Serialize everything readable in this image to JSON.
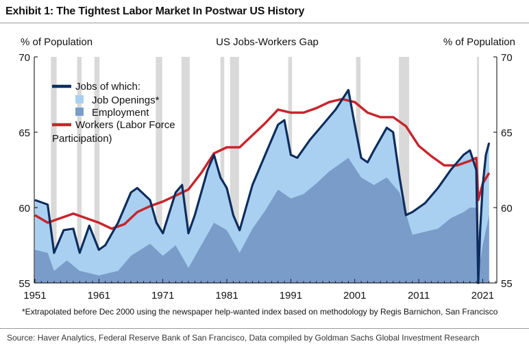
{
  "exhibit_title": "Exhibit 1: The Tightest Labor Market In Postwar US History",
  "footnote": "*Extrapolated before Dec 2000 using the newspaper help-wanted index based on methodology by Regis Barnichon, San Francisco",
  "source": "Source: Haver Analytics, Federal Reserve Bank of San Francisco, Data compiled by Goldman Sachs Global Investment Research",
  "colors": {
    "jobs": "#0d2d5e",
    "job_openings": "#a9d0f0",
    "employment": "#7a9cc9",
    "workers": "#c8252c",
    "recession": "#d9d9d9"
  },
  "chart_data": {
    "type": "line",
    "title": "US Jobs-Workers Gap",
    "ylabel_left": "% of Population",
    "ylabel_right": "% of Population",
    "ylim": [
      55,
      70
    ],
    "xlim": [
      1951,
      2023
    ],
    "yticks": [
      55,
      60,
      65,
      70
    ],
    "xticks": [
      1951,
      1961,
      1971,
      1981,
      1991,
      2001,
      2011,
      2021
    ],
    "grid": false,
    "legend_position": "top-left",
    "legend": [
      {
        "label": "Jobs of which:",
        "kind": "line",
        "color_key": "jobs"
      },
      {
        "label": "Job Openings*",
        "kind": "area",
        "color_key": "job_openings"
      },
      {
        "label": "Employment",
        "kind": "area",
        "color_key": "employment"
      },
      {
        "label": "Workers (Labor Force",
        "kind": "line",
        "color_key": "workers"
      },
      {
        "label": "Participation)",
        "kind": "none",
        "color_key": ""
      }
    ],
    "recessions": [
      [
        1953.5,
        1954.4
      ],
      [
        1957.6,
        1958.3
      ],
      [
        1960.3,
        1961.1
      ],
      [
        1969.9,
        1970.9
      ],
      [
        1973.9,
        1975.2
      ],
      [
        1980.0,
        1980.6
      ],
      [
        1981.5,
        1982.9
      ],
      [
        1990.6,
        1991.2
      ],
      [
        2001.2,
        2001.9
      ],
      [
        2007.9,
        2009.5
      ],
      [
        2020.1,
        2020.4
      ]
    ],
    "series": [
      {
        "name": "Jobs of which:",
        "x": [
          1951,
          1953,
          1954,
          1955.5,
          1957,
          1958,
          1959.5,
          1961,
          1962,
          1964,
          1966,
          1967,
          1969,
          1970,
          1971,
          1973,
          1974,
          1975,
          1976,
          1978,
          1979,
          1980,
          1981,
          1982,
          1983,
          1985,
          1987,
          1989,
          1990,
          1991,
          1992,
          1994,
          1996,
          1998,
          2000,
          2001,
          2002,
          2003,
          2004,
          2006,
          2007,
          2008,
          2009,
          2010,
          2012,
          2014,
          2016,
          2018,
          2019,
          2020,
          2020.3,
          2020.6,
          2021,
          2021.5,
          2022
        ],
        "values": [
          60.5,
          60.2,
          57.0,
          58.5,
          58.6,
          57.0,
          58.8,
          57.2,
          57.5,
          59.0,
          61.0,
          61.3,
          60.5,
          59.0,
          58.3,
          61.0,
          61.5,
          58.3,
          59.5,
          62.5,
          63.5,
          62.0,
          61.3,
          59.5,
          58.5,
          61.5,
          63.5,
          65.5,
          65.8,
          63.5,
          63.3,
          64.5,
          65.5,
          66.5,
          67.8,
          65.5,
          63.3,
          63.0,
          63.8,
          65.3,
          65.0,
          62.0,
          59.5,
          59.7,
          60.3,
          61.3,
          62.5,
          63.5,
          63.8,
          62.5,
          55.0,
          58.5,
          61.5,
          63.5,
          64.3
        ]
      },
      {
        "name": "Job Openings*",
        "x": [
          1951,
          1953,
          1954,
          1955.5,
          1957,
          1958,
          1959.5,
          1961,
          1962,
          1964,
          1966,
          1967,
          1969,
          1970,
          1971,
          1973,
          1974,
          1975,
          1976,
          1978,
          1979,
          1980,
          1981,
          1982,
          1983,
          1985,
          1987,
          1989,
          1990,
          1991,
          1992,
          1994,
          1996,
          1998,
          2000,
          2001,
          2002,
          2003,
          2004,
          2006,
          2007,
          2008,
          2009,
          2010,
          2012,
          2014,
          2016,
          2018,
          2019,
          2020,
          2020.3,
          2020.6,
          2021,
          2021.5,
          2022
        ],
        "values": [
          60.4,
          60.1,
          56.9,
          58.4,
          58.5,
          56.9,
          58.7,
          57.1,
          57.4,
          58.9,
          60.9,
          61.2,
          60.4,
          58.9,
          58.2,
          60.9,
          61.4,
          58.2,
          59.4,
          62.4,
          63.4,
          61.9,
          61.2,
          59.4,
          58.4,
          61.4,
          63.4,
          65.4,
          65.7,
          63.4,
          63.2,
          64.4,
          65.4,
          66.4,
          67.7,
          65.4,
          63.2,
          62.9,
          63.7,
          65.2,
          64.9,
          61.9,
          59.4,
          59.6,
          60.2,
          61.2,
          62.4,
          63.4,
          63.7,
          62.4,
          55.0,
          58.4,
          61.4,
          63.4,
          64.2
        ]
      },
      {
        "name": "Employment",
        "x": [
          1951,
          1953,
          1954,
          1956,
          1958,
          1961,
          1964,
          1966,
          1969,
          1971,
          1973,
          1975,
          1977,
          1979,
          1981,
          1983,
          1985,
          1987,
          1989,
          1991,
          1993,
          1995,
          1997,
          2000,
          2002,
          2004,
          2006,
          2008,
          2010,
          2012,
          2014,
          2016,
          2018,
          2019,
          2020,
          2020.3,
          2020.6,
          2021,
          2021.5,
          2022
        ],
        "values": [
          57.2,
          57.0,
          55.8,
          56.5,
          55.8,
          55.5,
          55.8,
          56.8,
          57.6,
          56.8,
          57.5,
          56.0,
          57.5,
          59.0,
          58.5,
          57.0,
          58.6,
          59.8,
          61.2,
          60.6,
          60.9,
          61.6,
          62.4,
          63.3,
          62.0,
          61.5,
          62.0,
          61.0,
          58.2,
          58.4,
          58.6,
          59.3,
          59.7,
          60.0,
          60.0,
          55.0,
          56.5,
          57.5,
          58.5,
          59.5
        ]
      },
      {
        "name": "Workers (Labor Force Participation)",
        "x": [
          1951,
          1953,
          1955,
          1957,
          1959,
          1961,
          1963,
          1965,
          1967,
          1969,
          1971,
          1973,
          1975,
          1977,
          1979,
          1981,
          1983,
          1985,
          1987,
          1989,
          1991,
          1993,
          1995,
          1997,
          1999,
          2001,
          2003,
          2005,
          2007,
          2009,
          2011,
          2013,
          2015,
          2017,
          2019,
          2020,
          2020.3,
          2021,
          2022
        ],
        "values": [
          59.5,
          59.0,
          59.3,
          59.6,
          59.3,
          59.0,
          58.6,
          58.9,
          59.7,
          60.1,
          60.4,
          60.8,
          61.2,
          62.3,
          63.6,
          64.0,
          64.0,
          64.8,
          65.6,
          66.5,
          66.3,
          66.3,
          66.6,
          67.0,
          67.2,
          67.0,
          66.3,
          66.0,
          66.0,
          65.4,
          64.1,
          63.4,
          62.8,
          62.8,
          63.1,
          63.3,
          60.5,
          61.6,
          62.3
        ]
      }
    ]
  }
}
